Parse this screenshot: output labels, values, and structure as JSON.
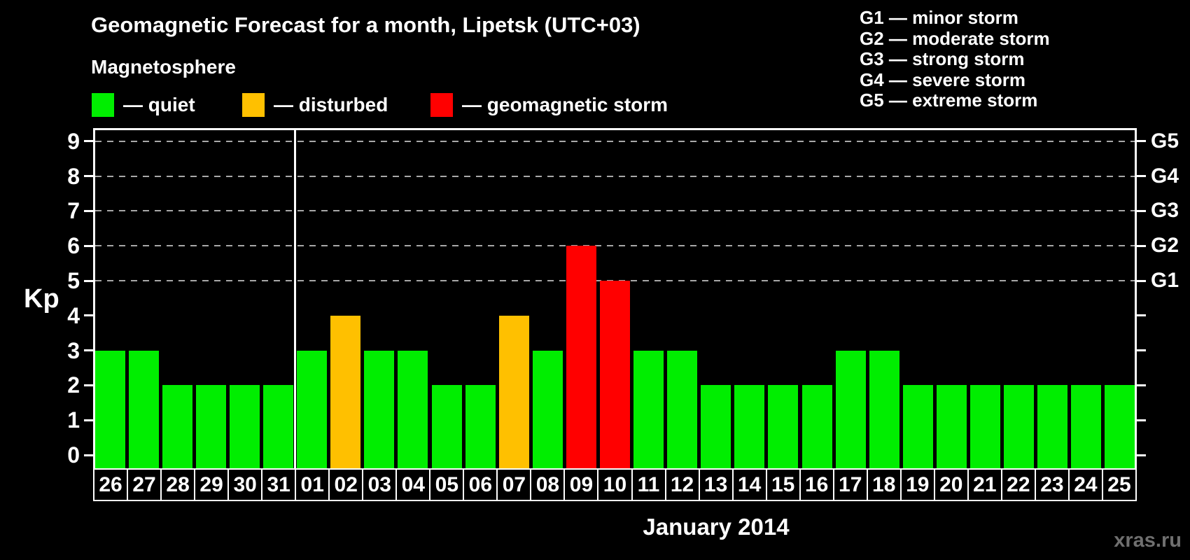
{
  "title": "Geomagnetic Forecast for a month, Lipetsk (UTC+03)",
  "subtitle": "Magnetosphere",
  "legend": {
    "items": [
      {
        "key": "quiet",
        "label": "— quiet",
        "color": "#00ee00"
      },
      {
        "key": "disturbed",
        "label": "— disturbed",
        "color": "#ffc000"
      },
      {
        "key": "storm",
        "label": "— geomagnetic storm",
        "color": "#ff0000"
      }
    ]
  },
  "g_legend": [
    "G1 — minor storm",
    "G2 — moderate storm",
    "G3 — strong storm",
    "G4 — severe storm",
    "G5 — extreme storm"
  ],
  "axes": {
    "y_title": "Kp",
    "y_ticks": [
      "0",
      "1",
      "2",
      "3",
      "4",
      "5",
      "6",
      "7",
      "8",
      "9"
    ],
    "right_labels": [
      {
        "kp": 5,
        "label": "G1"
      },
      {
        "kp": 6,
        "label": "G2"
      },
      {
        "kp": 7,
        "label": "G3"
      },
      {
        "kp": 8,
        "label": "G4"
      },
      {
        "kp": 9,
        "label": "G5"
      }
    ],
    "x_title": "January 2014"
  },
  "watermark": "xras.ru",
  "chart_data": {
    "type": "bar",
    "title": "Geomagnetic Forecast for a month, Lipetsk (UTC+03)",
    "xlabel": "January 2014",
    "ylabel": "Kp",
    "ylim": [
      0,
      9
    ],
    "grid": "dashed horizontal at Kp 5-9 (G1-G5 levels)",
    "legend_position": "top",
    "categories": [
      "26",
      "27",
      "28",
      "29",
      "30",
      "31",
      "01",
      "02",
      "03",
      "04",
      "05",
      "06",
      "07",
      "08",
      "09",
      "10",
      "11",
      "12",
      "13",
      "14",
      "15",
      "16",
      "17",
      "18",
      "19",
      "20",
      "21",
      "22",
      "23",
      "24",
      "25"
    ],
    "values": [
      3,
      3,
      2,
      2,
      2,
      2,
      3,
      4,
      3,
      3,
      2,
      2,
      4,
      3,
      6,
      5,
      3,
      3,
      2,
      2,
      2,
      2,
      3,
      3,
      2,
      2,
      2,
      2,
      2,
      2,
      2
    ],
    "states": [
      "quiet",
      "quiet",
      "quiet",
      "quiet",
      "quiet",
      "quiet",
      "quiet",
      "disturbed",
      "quiet",
      "quiet",
      "quiet",
      "quiet",
      "disturbed",
      "quiet",
      "storm",
      "storm",
      "quiet",
      "quiet",
      "quiet",
      "quiet",
      "quiet",
      "quiet",
      "quiet",
      "quiet",
      "quiet",
      "quiet",
      "quiet",
      "quiet",
      "quiet",
      "quiet",
      "quiet"
    ],
    "colors": {
      "quiet": "#00ee00",
      "disturbed": "#ffc000",
      "storm": "#ff0000"
    },
    "month_separator_after_index": 5,
    "gridlines_at_kp": [
      5,
      6,
      7,
      8,
      9
    ]
  }
}
